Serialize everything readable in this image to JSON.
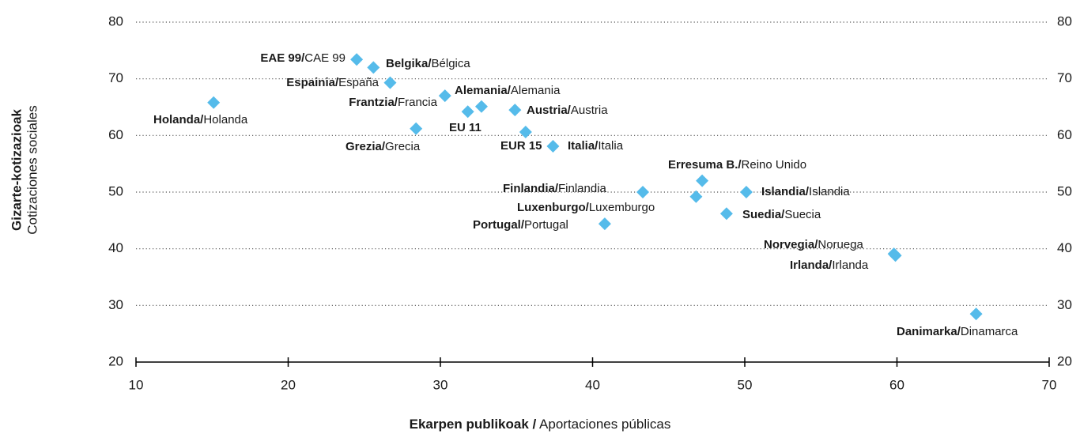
{
  "chart_data": {
    "type": "scatter",
    "x_label": {
      "bold": "Ekarpen publikoak /",
      "regular": " Aportaciones públicas"
    },
    "y_label": {
      "bold": "Gizarte-kotizazioak",
      "regular": "Cotizaciones sociales"
    },
    "xlim": [
      10,
      70
    ],
    "xticks": [
      10,
      20,
      30,
      40,
      50,
      60,
      70
    ],
    "ylim": [
      20,
      80
    ],
    "yticks": [
      20,
      30,
      40,
      50,
      60,
      70,
      80
    ],
    "grid": true,
    "color": "#55bbea",
    "points": [
      {
        "bold": "EAE 99/",
        "regular": "CAE 99",
        "x": 24.5,
        "y": 73.4
      },
      {
        "bold": "Belgika/",
        "regular": "Bélgica",
        "x": 25.6,
        "y": 72.0
      },
      {
        "bold": "Espainia/",
        "regular": "España",
        "x": 26.7,
        "y": 69.3
      },
      {
        "bold": "Holanda/",
        "regular": "Holanda",
        "x": 15.1,
        "y": 65.8
      },
      {
        "bold": "Frantzia/",
        "regular": "Francia",
        "x": 30.3,
        "y": 67.0
      },
      {
        "bold": "Alemania/",
        "regular": "Alemania",
        "x": 32.7,
        "y": 65.1
      },
      {
        "bold": "EU 11",
        "x": 31.8,
        "y": 64.2
      },
      {
        "bold": "Austria/",
        "regular": "Austria",
        "x": 34.9,
        "y": 64.5
      },
      {
        "bold": "Grezia/",
        "regular": "Grecia",
        "x": 28.4,
        "y": 61.2
      },
      {
        "bold": "EUR 15",
        "x": 35.6,
        "y": 60.6
      },
      {
        "bold": "Italia/",
        "regular": "Italia",
        "x": 37.4,
        "y": 58.1
      },
      {
        "bold": "Erresuma B./",
        "regular": "Reino Unido",
        "x": 47.2,
        "y": 52.0
      },
      {
        "bold": "Finlandia/",
        "regular": "Finlandia",
        "x": 43.3,
        "y": 50.0
      },
      {
        "bold": "Luxenburgo/",
        "regular": "Luxemburgo",
        "x": 46.8,
        "y": 49.2
      },
      {
        "bold": "Islandia/",
        "regular": "Islandia",
        "x": 50.1,
        "y": 50.0
      },
      {
        "bold": "Suedia/",
        "regular": "Suecia",
        "x": 48.8,
        "y": 46.2
      },
      {
        "bold": "Portugal/",
        "regular": "Portugal",
        "x": 40.8,
        "y": 44.4
      },
      {
        "bold": "Norvegia/",
        "regular": "Noruega",
        "x": 59.8,
        "y": 39.1
      },
      {
        "bold": "Irlanda/",
        "regular": "Irlanda",
        "x": 59.9,
        "y": 38.8
      },
      {
        "bold": "Danimarka/",
        "regular": "Dinamarca",
        "x": 65.2,
        "y": 28.5
      }
    ]
  }
}
